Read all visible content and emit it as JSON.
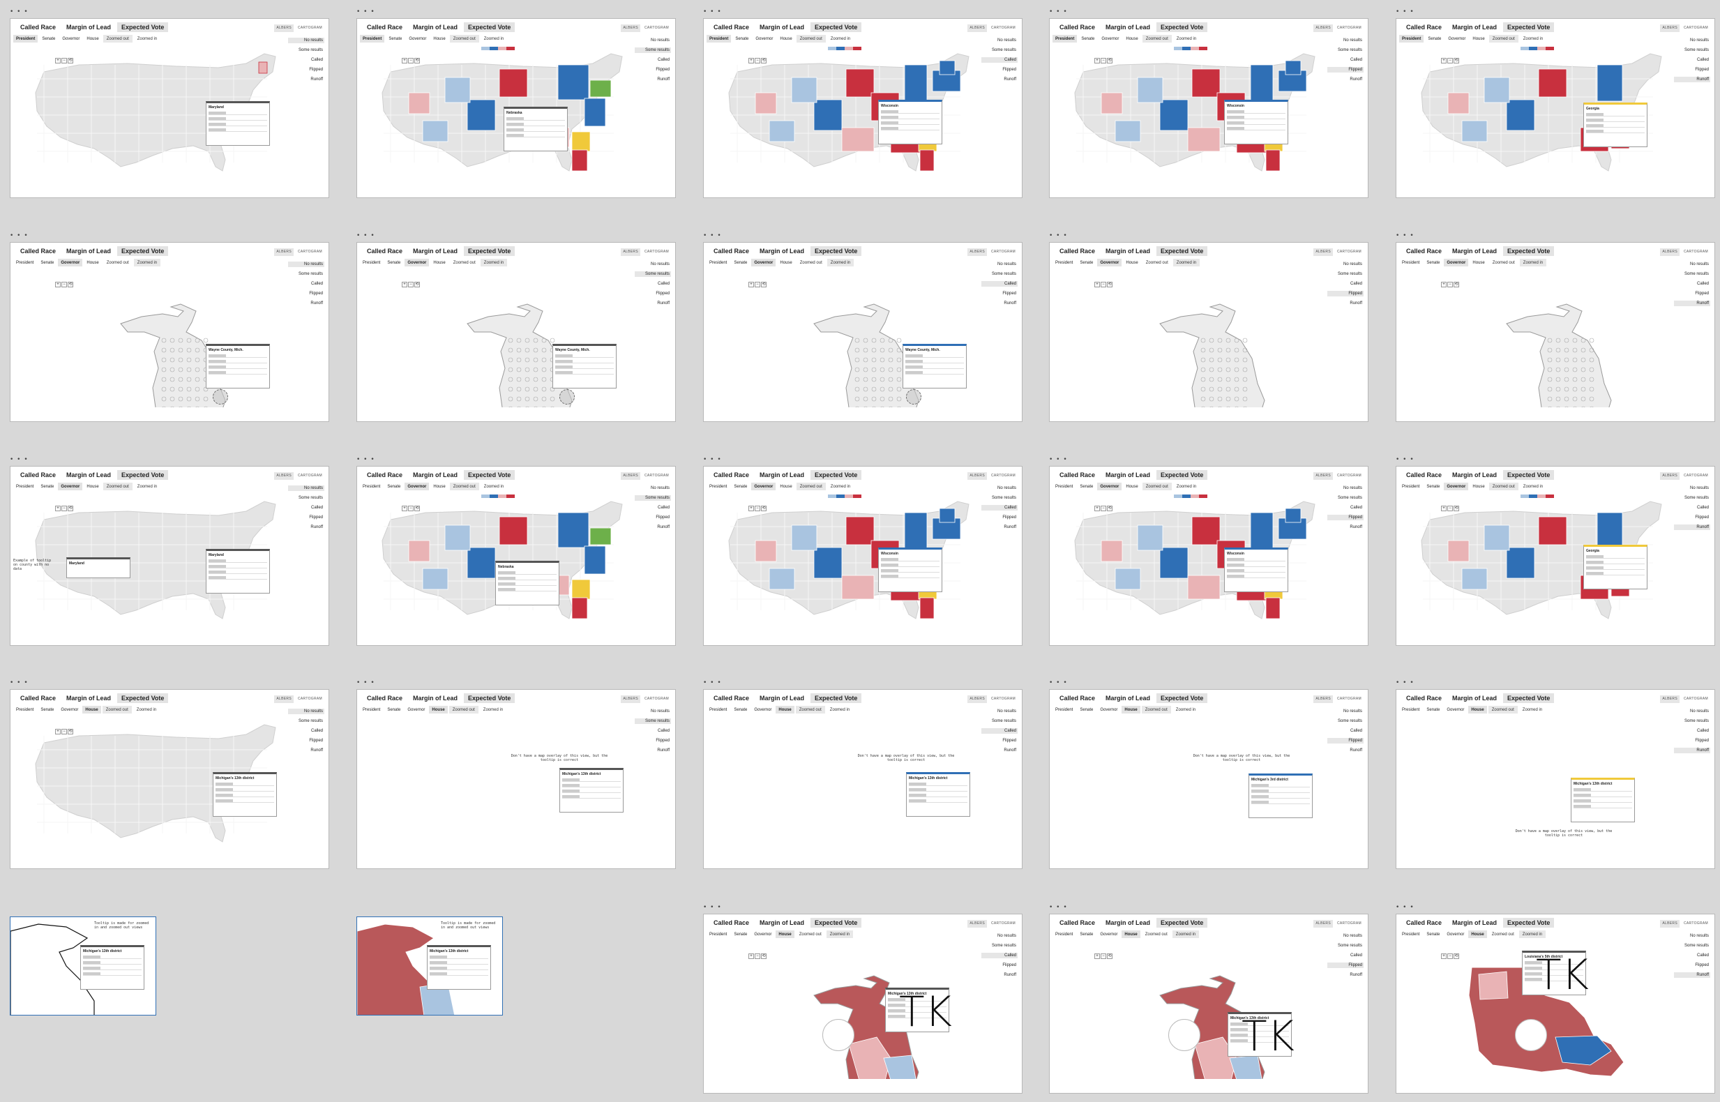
{
  "window": {
    "dots": "• • •"
  },
  "modes": [
    "Called Race",
    "Margin of Lead",
    "Expected Vote"
  ],
  "race_tabs": [
    "President",
    "Senate",
    "Governor",
    "House"
  ],
  "zoom_buttons": [
    "Zoomed out",
    "Zoomed in"
  ],
  "projections": [
    "ALBERS",
    "CARTOGRAM"
  ],
  "legend_items": [
    "No results",
    "Some results",
    "Called",
    "Flipped",
    "Runoff"
  ],
  "tooltips": {
    "maryland": "Maryland",
    "nebraska": "Nebraska",
    "wisconsin": "Wisconsin",
    "georgia": "Georgia",
    "wayne": "Wayne County, Mich.",
    "house_district": "Michigan's 13th district",
    "house_district_alt": "Michigan's 3rd district",
    "louisiana_district": "Louisiana's 5th district",
    "maryland_overlay": "Maryland"
  },
  "notes": {
    "not_found": "Don't have a map overlay of this view, but the tooltip is correct",
    "placeholder": "TK",
    "frag_1": "Tooltip is made for zoomed in and zoomed out views",
    "frag_2": "Tooltip is made for zoomed in and zoomed out views",
    "side_note": "Example of tooltip on county with no data"
  },
  "colors": {
    "dem": "#2f6fb5",
    "dem_light": "#a9c4e0",
    "rep": "#c8303e",
    "rep_light": "#e9b3b5",
    "yellow": "#f0c93a",
    "green": "#6db04a",
    "gray": "#e4e4e4",
    "border": "#ffffff"
  }
}
